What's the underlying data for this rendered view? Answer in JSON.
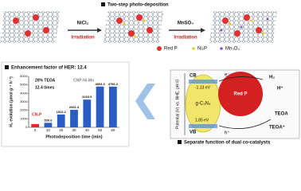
{
  "header": {
    "title": "Two-step photo-deposition"
  },
  "steps": [
    {
      "reagent": "NiCl₂",
      "action": "Irradiation"
    },
    {
      "reagent": "MnSO₄",
      "action": "Irradiation"
    }
  ],
  "legend": [
    "Red P",
    "Ni₂P",
    "Mn₃O₄"
  ],
  "chart_data": {
    "type": "bar",
    "title": "Enhancement factor of HER: 12.4",
    "annotations": [
      "20% TEOA",
      "12.4 times",
      "CNP-Ni-Mn",
      "CN-P"
    ],
    "x_label": "Photodeposition time (min)",
    "y_label": "H₂ evolution (μmol g⁻¹ h⁻¹)",
    "categories": [
      "0",
      "10",
      "20",
      "30",
      "40",
      "50",
      "60"
    ],
    "values": [
      388,
      530.6,
      1512.2,
      2061.3,
      3263.9,
      4803.3,
      4796.2
    ],
    "value_labels": [
      null,
      "530.6",
      "1512.2",
      "2061.3",
      "3263.9",
      "4803.3",
      "4796.2"
    ],
    "colors": [
      "#e02a2a",
      "#2a5cc4",
      "#2a5cc4",
      "#2a5cc4",
      "#2a5cc4",
      "#2a5cc4",
      "#2a5cc4"
    ],
    "ylim": [
      0,
      6000
    ],
    "yticks": [
      0,
      1000,
      2000,
      3000,
      4000,
      5000,
      6000
    ]
  },
  "mechanism": {
    "caption": "Separate function of dual co-catalysts",
    "axis": "Potential (V) vs. NHE, pH=0",
    "labels": [
      "CB",
      "VB",
      "-1.13 eV",
      "1.85 eV",
      "g-C₃N₄",
      "Red P",
      "e⁻",
      "h⁺",
      "H₂",
      "H⁺",
      "TEOA",
      "TEOA⁺"
    ]
  }
}
